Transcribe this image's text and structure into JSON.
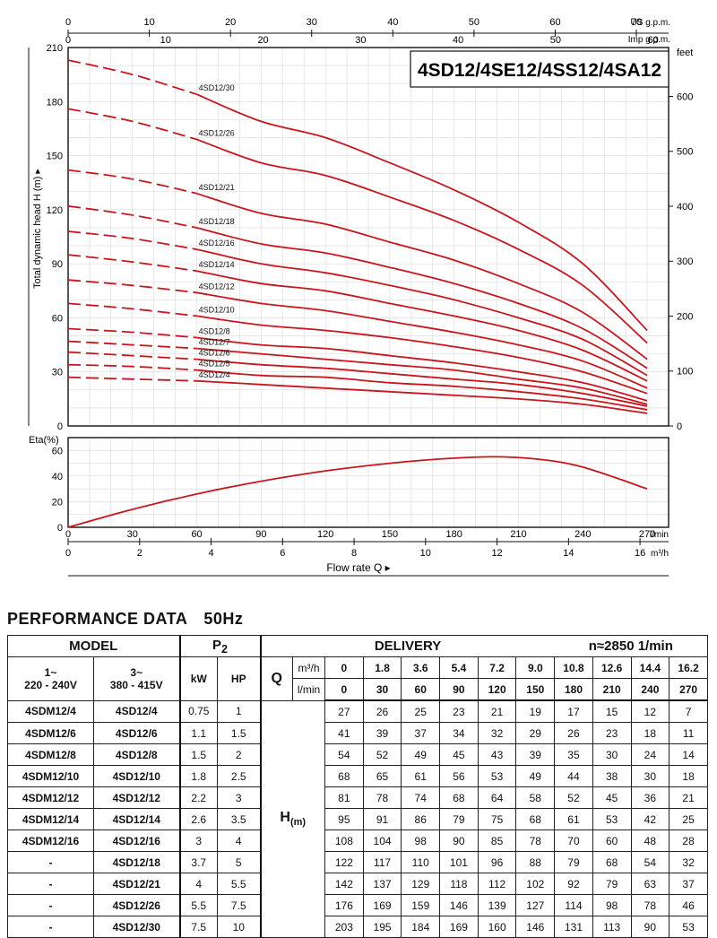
{
  "title_box": "4SD12/4SE12/4SS12/4SA12",
  "axes": {
    "us_gpm_label": "US g.p.m.",
    "imp_gpm_label": "Imp g.p.m.",
    "feet_label": "feet",
    "head_label": "Total dynamic head H (m)",
    "eta_label": "Eta(%)",
    "lmin_label": "l/min",
    "m3h_label": "m³/h",
    "flow_label": "Flow rate  Q",
    "us_gpm_ticks": [
      0,
      10,
      20,
      30,
      40,
      50,
      60,
      70
    ],
    "imp_gpm_ticks": [
      0,
      10,
      20,
      30,
      40,
      50,
      60
    ],
    "head_ticks": [
      0,
      30,
      60,
      90,
      120,
      150,
      180,
      210
    ],
    "feet_ticks": [
      0,
      100,
      200,
      300,
      400,
      500,
      600
    ],
    "eta_ticks": [
      0,
      20,
      40,
      60
    ],
    "lmin_ticks": [
      0,
      30,
      60,
      90,
      120,
      150,
      180,
      210,
      240,
      270
    ],
    "m3h_ticks": [
      0,
      2,
      4,
      6,
      8,
      10,
      12,
      14,
      16
    ]
  },
  "chart_data": [
    {
      "type": "line",
      "title": "4SD12/4SE12/4SS12/4SA12",
      "xlabel": "Flow rate Q",
      "ylabel": "Total dynamic head H (m)",
      "x_unit": "l/min",
      "xlim": [
        0,
        280
      ],
      "ylim": [
        0,
        210
      ],
      "y2_unit": "feet",
      "grid": true,
      "curve_color": "#c8161d",
      "dashed_until_x": 60,
      "x": [
        0,
        30,
        60,
        90,
        120,
        150,
        180,
        210,
        240,
        270
      ],
      "series": [
        {
          "name": "4SD12/30",
          "values": [
            203,
            195,
            184,
            169,
            160,
            146,
            131,
            113,
            90,
            53
          ]
        },
        {
          "name": "4SD12/26",
          "values": [
            176,
            169,
            159,
            146,
            139,
            127,
            114,
            98,
            78,
            46
          ]
        },
        {
          "name": "4SD12/21",
          "values": [
            142,
            137,
            129,
            118,
            112,
            102,
            92,
            79,
            63,
            37
          ]
        },
        {
          "name": "4SD12/18",
          "values": [
            122,
            117,
            110,
            101,
            96,
            88,
            79,
            68,
            54,
            32
          ]
        },
        {
          "name": "4SD12/16",
          "values": [
            108,
            104,
            98,
            90,
            85,
            78,
            70,
            60,
            48,
            28
          ]
        },
        {
          "name": "4SD12/14",
          "values": [
            95,
            91,
            86,
            79,
            75,
            68,
            61,
            53,
            42,
            25
          ]
        },
        {
          "name": "4SD12/12",
          "values": [
            81,
            78,
            74,
            68,
            64,
            58,
            52,
            45,
            36,
            21
          ]
        },
        {
          "name": "4SD12/10",
          "values": [
            68,
            65,
            61,
            56,
            53,
            49,
            44,
            38,
            30,
            18
          ]
        },
        {
          "name": "4SD12/8",
          "values": [
            54,
            52,
            49,
            45,
            43,
            39,
            35,
            30,
            24,
            14
          ]
        },
        {
          "name": "4SD12/7",
          "values": [
            47,
            45,
            43,
            40,
            37,
            34,
            31,
            26,
            21,
            12
          ]
        },
        {
          "name": "4SD12/6",
          "values": [
            41,
            39,
            37,
            34,
            32,
            29,
            26,
            23,
            18,
            11
          ]
        },
        {
          "name": "4SD12/5",
          "values": [
            34,
            33,
            31,
            28,
            27,
            24,
            22,
            19,
            15,
            9
          ]
        },
        {
          "name": "4SD12/4",
          "values": [
            27,
            26,
            25,
            23,
            21,
            19,
            17,
            15,
            12,
            7
          ]
        }
      ]
    },
    {
      "type": "line",
      "title": "",
      "xlabel": "Flow rate Q",
      "ylabel": "Eta(%)",
      "x_unit": "l/min",
      "xlim": [
        0,
        280
      ],
      "ylim": [
        0,
        70
      ],
      "grid": true,
      "series": [
        {
          "name": "Eta",
          "x": [
            0,
            30,
            60,
            90,
            120,
            150,
            180,
            200,
            220,
            240,
            270
          ],
          "values": [
            0,
            14,
            26,
            36,
            44,
            50,
            54,
            55,
            53,
            47,
            30
          ]
        }
      ]
    }
  ],
  "table": {
    "title": "PERFORMANCE  DATA",
    "freq": "50Hz",
    "model_header": "MODEL",
    "p2_header": "P",
    "p2_sub": "2",
    "delivery_header": "DELIVERY",
    "speed": "n≈2850 1/min",
    "col_1ph": "1~",
    "col_1ph_v": "220 - 240V",
    "col_3ph": "3~",
    "col_3ph_v": "380 - 415V",
    "kw": "kW",
    "hp": "HP",
    "q_label": "Q",
    "q_unit1": "m³/h",
    "q_unit2": "l/min",
    "h_label": "H",
    "h_unit": "(m)",
    "q_m3h": [
      "0",
      "1.8",
      "3.6",
      "5.4",
      "7.2",
      "9.0",
      "10.8",
      "12.6",
      "14.4",
      "16.2"
    ],
    "q_lmin": [
      "0",
      "30",
      "60",
      "90",
      "120",
      "150",
      "180",
      "210",
      "240",
      "270"
    ],
    "rows": [
      {
        "m1": "4SDM12/4",
        "m3": "4SD12/4",
        "kw": "0.75",
        "hp": "1",
        "h": [
          "27",
          "26",
          "25",
          "23",
          "21",
          "19",
          "17",
          "15",
          "12",
          "7"
        ]
      },
      {
        "m1": "4SDM12/6",
        "m3": "4SD12/6",
        "kw": "1.1",
        "hp": "1.5",
        "h": [
          "41",
          "39",
          "37",
          "34",
          "32",
          "29",
          "26",
          "23",
          "18",
          "11"
        ]
      },
      {
        "m1": "4SDM12/8",
        "m3": "4SD12/8",
        "kw": "1.5",
        "hp": "2",
        "h": [
          "54",
          "52",
          "49",
          "45",
          "43",
          "39",
          "35",
          "30",
          "24",
          "14"
        ]
      },
      {
        "m1": "4SDM12/10",
        "m3": "4SD12/10",
        "kw": "1.8",
        "hp": "2.5",
        "h": [
          "68",
          "65",
          "61",
          "56",
          "53",
          "49",
          "44",
          "38",
          "30",
          "18"
        ]
      },
      {
        "m1": "4SDM12/12",
        "m3": "4SD12/12",
        "kw": "2.2",
        "hp": "3",
        "h": [
          "81",
          "78",
          "74",
          "68",
          "64",
          "58",
          "52",
          "45",
          "36",
          "21"
        ]
      },
      {
        "m1": "4SDM12/14",
        "m3": "4SD12/14",
        "kw": "2.6",
        "hp": "3.5",
        "h": [
          "95",
          "91",
          "86",
          "79",
          "75",
          "68",
          "61",
          "53",
          "42",
          "25"
        ]
      },
      {
        "m1": "4SDM12/16",
        "m3": "4SD12/16",
        "kw": "3",
        "hp": "4",
        "h": [
          "108",
          "104",
          "98",
          "90",
          "85",
          "78",
          "70",
          "60",
          "48",
          "28"
        ]
      },
      {
        "m1": "-",
        "m3": "4SD12/18",
        "kw": "3.7",
        "hp": "5",
        "h": [
          "122",
          "117",
          "110",
          "101",
          "96",
          "88",
          "79",
          "68",
          "54",
          "32"
        ]
      },
      {
        "m1": "-",
        "m3": "4SD12/21",
        "kw": "4",
        "hp": "5.5",
        "h": [
          "142",
          "137",
          "129",
          "118",
          "112",
          "102",
          "92",
          "79",
          "63",
          "37"
        ]
      },
      {
        "m1": "-",
        "m3": "4SD12/26",
        "kw": "5.5",
        "hp": "7.5",
        "h": [
          "176",
          "169",
          "159",
          "146",
          "139",
          "127",
          "114",
          "98",
          "78",
          "46"
        ]
      },
      {
        "m1": "-",
        "m3": "4SD12/30",
        "kw": "7.5",
        "hp": "10",
        "h": [
          "203",
          "195",
          "184",
          "169",
          "160",
          "146",
          "131",
          "113",
          "90",
          "53"
        ]
      }
    ]
  }
}
